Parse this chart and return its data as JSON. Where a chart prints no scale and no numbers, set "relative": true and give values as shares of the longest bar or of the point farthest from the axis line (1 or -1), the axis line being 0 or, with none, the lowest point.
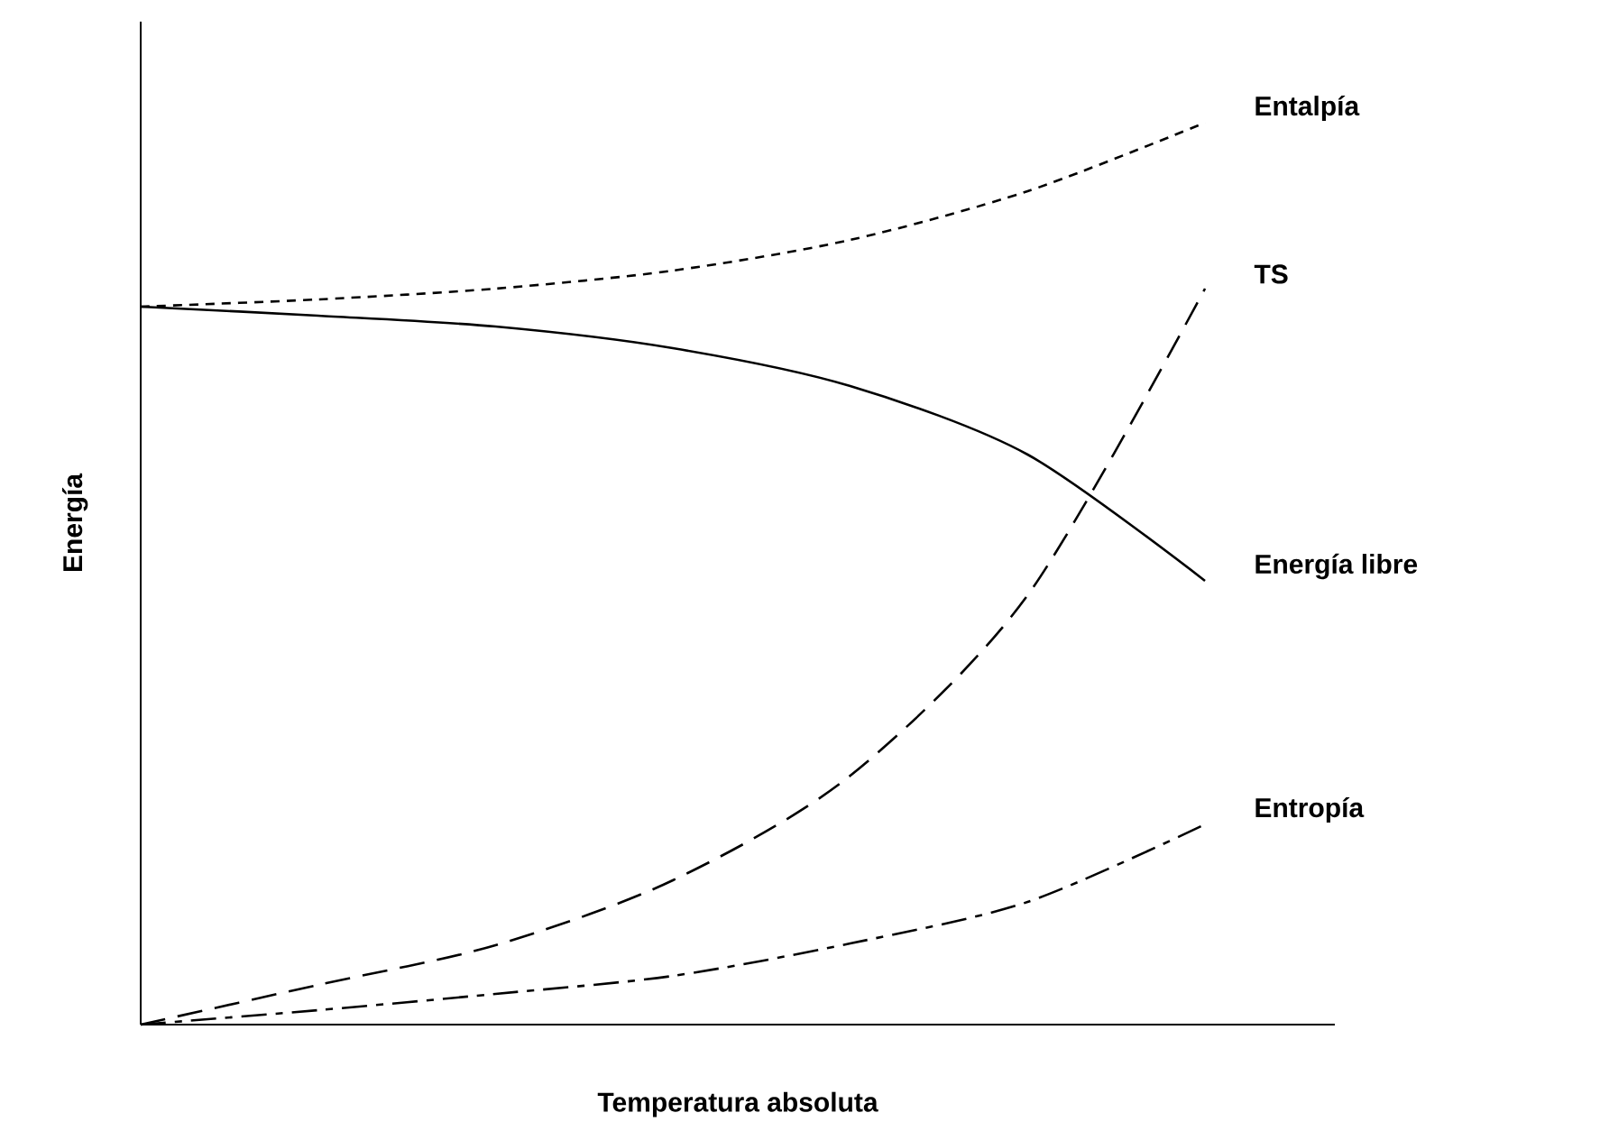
{
  "chart_data": {
    "type": "line",
    "relative": true,
    "xlabel": "Temperatura absoluta",
    "ylabel": "Energía",
    "categories": [
      null,
      null,
      null,
      null,
      null,
      null,
      null
    ],
    "series": [
      {
        "name": "Entalpía",
        "color": "#000000",
        "line_style": "dotted",
        "values": [
          0.796,
          0.804,
          0.816,
          0.836,
          0.87,
          0.924,
          1.0
        ]
      },
      {
        "name": "TS",
        "color": "#000000",
        "line_style": "dashed",
        "values": [
          0,
          0.044,
          0.088,
          0.16,
          0.276,
          0.476,
          0.816
        ]
      },
      {
        "name": "Energía libre",
        "color": "#000000",
        "line_style": "solid",
        "values": [
          0.796,
          0.786,
          0.774,
          0.75,
          0.708,
          0.632,
          0.492
        ]
      },
      {
        "name": "Entropía",
        "color": "#000000",
        "line_style": "dashdot",
        "values": [
          0,
          0.016,
          0.034,
          0.054,
          0.09,
          0.136,
          0.222
        ]
      }
    ]
  }
}
